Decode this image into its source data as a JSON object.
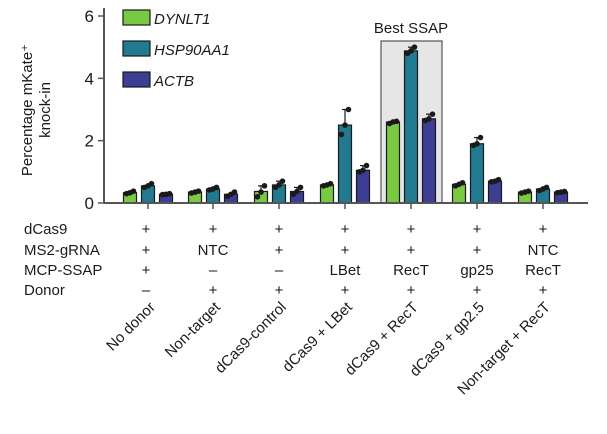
{
  "chart_data": {
    "type": "bar",
    "title": "",
    "xlabel": "",
    "ylabel": "Percentage mKate+ knock-in",
    "ylabel_lines": [
      "Percentage mKate⁺",
      "knock-in"
    ],
    "ylim": [
      0,
      6
    ],
    "yticks": [
      0,
      2,
      4,
      6
    ],
    "ytick_labels": [
      "0",
      "2",
      "4",
      "6"
    ],
    "grid": false,
    "legend_position": "top-left",
    "categories": [
      "No donor",
      "Non-target",
      "dCas9-control",
      "dCas9 + LBet",
      "dCas9 + RecT",
      "dCas9 + gp2.5",
      "Non-target + RecT"
    ],
    "series": [
      {
        "name": "DYNLT1",
        "color": "#7ac943",
        "values": [
          0.33,
          0.35,
          0.37,
          0.58,
          2.6,
          0.6,
          0.35
        ],
        "points": [
          [
            0.3,
            0.33,
            0.38
          ],
          [
            0.32,
            0.35,
            0.38
          ],
          [
            0.2,
            0.35,
            0.55
          ],
          [
            0.55,
            0.58,
            0.62
          ],
          [
            2.55,
            2.6,
            2.62
          ],
          [
            0.55,
            0.6,
            0.65
          ],
          [
            0.32,
            0.35,
            0.38
          ]
        ]
      },
      {
        "name": "HSP90AA1",
        "color": "#217a8f",
        "values": [
          0.55,
          0.45,
          0.58,
          2.5,
          4.88,
          1.9,
          0.45
        ],
        "points": [
          [
            0.5,
            0.55,
            0.62
          ],
          [
            0.42,
            0.45,
            0.5
          ],
          [
            0.5,
            0.58,
            0.7
          ],
          [
            2.2,
            2.5,
            3.0
          ],
          [
            4.8,
            4.88,
            5.0
          ],
          [
            1.85,
            1.9,
            2.1
          ],
          [
            0.4,
            0.45,
            0.5
          ]
        ]
      },
      {
        "name": "ACTB",
        "color": "#3d3d94",
        "values": [
          0.28,
          0.28,
          0.37,
          1.05,
          2.7,
          0.7,
          0.35
        ],
        "points": [
          [
            0.27,
            0.28,
            0.3
          ],
          [
            0.22,
            0.28,
            0.35
          ],
          [
            0.28,
            0.37,
            0.5
          ],
          [
            1.0,
            1.05,
            1.2
          ],
          [
            2.65,
            2.7,
            2.85
          ],
          [
            0.68,
            0.7,
            0.75
          ],
          [
            0.33,
            0.35,
            0.37
          ]
        ]
      }
    ],
    "annotations": [
      {
        "text": "Best SSAP",
        "highlight_category": "dCas9 + RecT",
        "highlight_color": "#e6e6e6"
      }
    ],
    "condition_table": {
      "rows": [
        {
          "label": "dCas9",
          "values": [
            "+",
            "+",
            "+",
            "+",
            "+",
            "+",
            "+"
          ]
        },
        {
          "label": "MS2-gRNA",
          "values": [
            "+",
            "NTC",
            "+",
            "+",
            "+",
            "+",
            "NTC"
          ]
        },
        {
          "label": "MCP-SSAP",
          "values": [
            "+",
            "–",
            "–",
            "LBet",
            "RecT",
            "gp25",
            "RecT"
          ]
        },
        {
          "label": "Donor",
          "values": [
            "–",
            "+",
            "+",
            "+",
            "+",
            "+",
            "+"
          ]
        }
      ]
    }
  }
}
